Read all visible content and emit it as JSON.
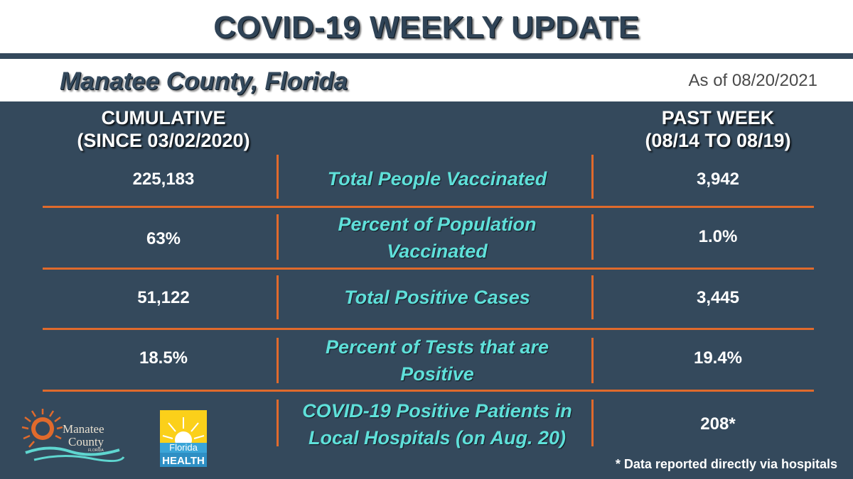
{
  "header": {
    "title": "COVID-19 WEEKLY UPDATE",
    "county": "Manatee County, Florida",
    "as_of": "As of 08/20/2021"
  },
  "columns": {
    "cumulative": {
      "line1": "CUMULATIVE",
      "line2": "(SINCE 03/02/2020)"
    },
    "past_week": {
      "line1": "PAST WEEK",
      "line2": "(08/14 TO 08/19)"
    }
  },
  "rows": [
    {
      "cumulative": "225,183",
      "metric_line1": "Total People Vaccinated",
      "metric_line2": "",
      "past_week": "3,942"
    },
    {
      "cumulative": "63%",
      "metric_line1": "Percent of Population",
      "metric_line2": "Vaccinated",
      "past_week": "1.0%"
    },
    {
      "cumulative": "51,122",
      "metric_line1": "Total Positive Cases",
      "metric_line2": "",
      "past_week": "3,445"
    },
    {
      "cumulative": "18.5%",
      "metric_line1": "Percent of Tests that are",
      "metric_line2": "Positive",
      "past_week": "19.4%"
    }
  ],
  "hospital": {
    "metric_line1": "COVID-19 Positive Patients in",
    "metric_line2": "Local Hospitals (on Aug. 20)",
    "value": "208*"
  },
  "footnote": "* Data reported directly via hospitals",
  "logos": {
    "manatee": {
      "line1": "Manatee",
      "line2": "County",
      "line3": "FLORIDA"
    },
    "florida_health": {
      "line1": "Florida",
      "line2": "HEALTH"
    }
  },
  "colors": {
    "navy": "#34495c",
    "orange": "#e06a2c",
    "teal": "#5fe0da"
  }
}
